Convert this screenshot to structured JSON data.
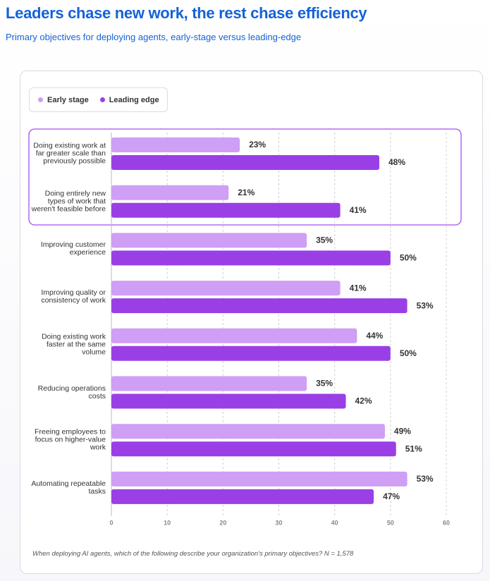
{
  "chart_data": {
    "type": "bar",
    "orientation": "horizontal",
    "title": "Leaders chase new work, the rest chase efficiency",
    "subtitle": "Primary objectives for deploying agents, early-stage versus leading-edge",
    "categories": [
      "Doing existing work at far greater scale than previously possible",
      "Doing entirely new types of work that weren't feasible before",
      "Improving customer experience",
      "Improving quality or consistency of work",
      "Doing existing work faster at the same volume",
      "Reducing operations costs",
      "Freeing employees to focus on higher-value work",
      "Automating repeatable tasks"
    ],
    "series": [
      {
        "name": "Early stage",
        "color": "#cf9ef5",
        "values": [
          23,
          21,
          35,
          41,
          44,
          35,
          49,
          53
        ],
        "value_labels": [
          "23%",
          "21%",
          "35%",
          "41%",
          "44%",
          "35%",
          "49%",
          "53%"
        ]
      },
      {
        "name": "Leading edge",
        "color": "#9a3fe6",
        "values": [
          48,
          41,
          50,
          53,
          50,
          42,
          51,
          47
        ],
        "value_labels": [
          "48%",
          "41%",
          "50%",
          "53%",
          "50%",
          "42%",
          "51%",
          "47%"
        ]
      }
    ],
    "xlim": [
      0,
      60
    ],
    "xticks": [
      0,
      10,
      20,
      30,
      40,
      50,
      60
    ],
    "grid": true,
    "footnote": "When deploying AI agents, which of the following describe your organization's primary objectives? N = 1,578"
  }
}
